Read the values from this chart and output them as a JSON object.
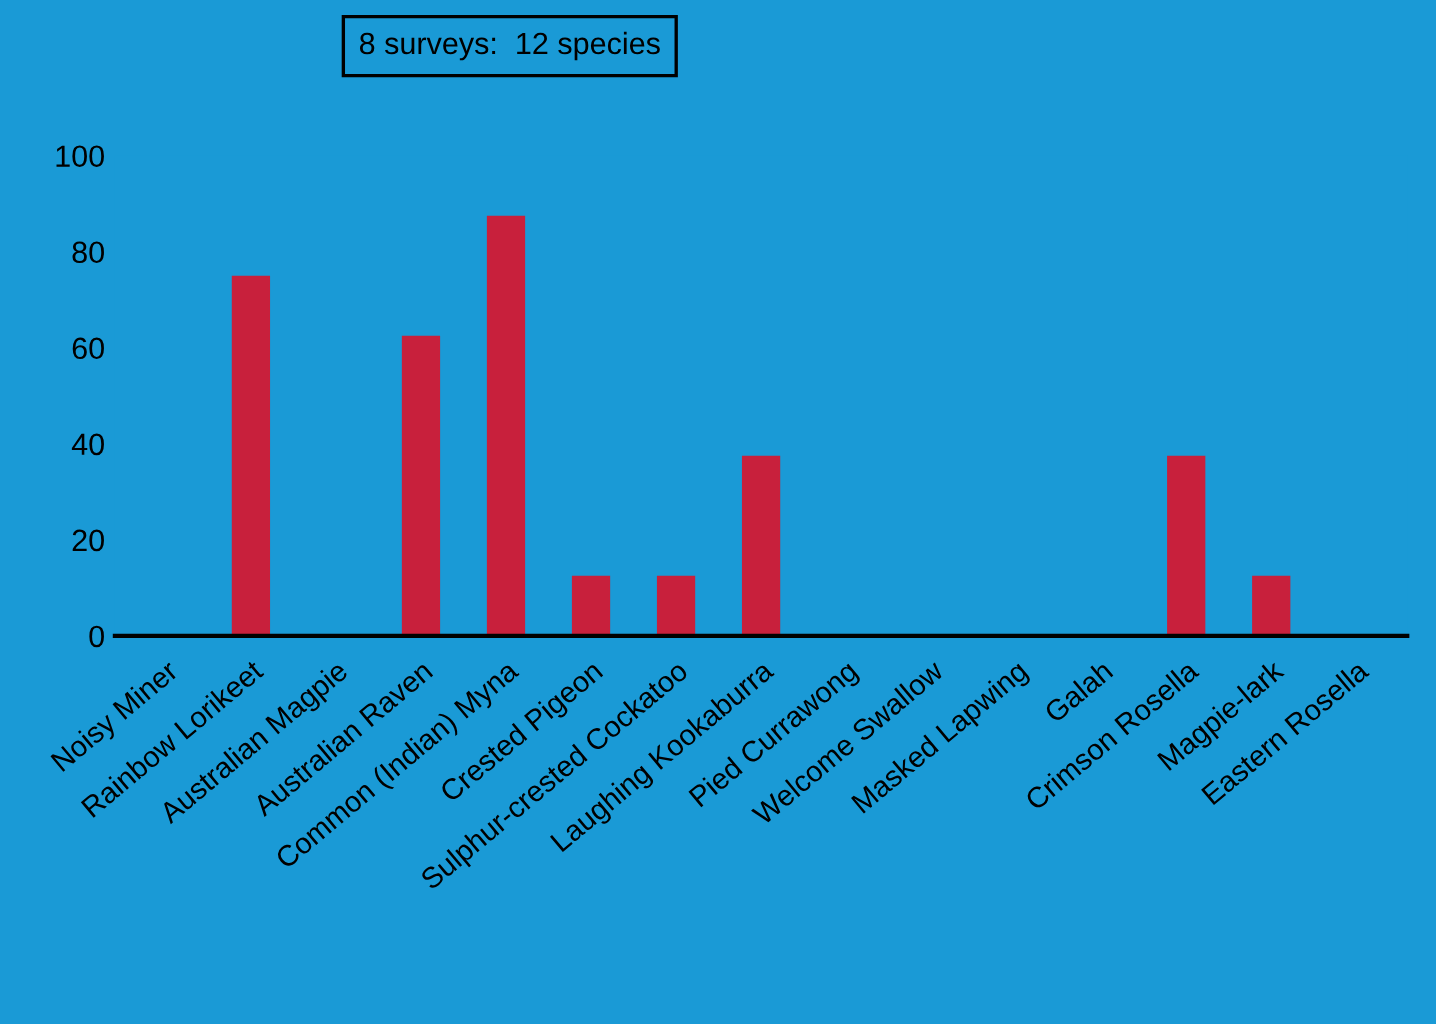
{
  "chart_data": {
    "type": "bar",
    "title": "8 surveys:  12 species",
    "categories": [
      "Noisy Miner",
      "Rainbow Lorikeet",
      "Australian Magpie",
      "Australian Raven",
      "Common (Indian) Myna",
      "Crested Pigeon",
      "Sulphur-crested Cockatoo",
      "Laughing Kookaburra",
      "Pied Currawong",
      "Welcome Swallow",
      "Masked Lapwing",
      "Galah",
      "Crimson Rosella",
      "Magpie-lark",
      "Eastern Rosella"
    ],
    "values": [
      0,
      75,
      0,
      62.5,
      87.5,
      12.5,
      12.5,
      37.5,
      0,
      0,
      0,
      0,
      37.5,
      12.5,
      0
    ],
    "color": "#c8203c",
    "ylim": [
      0,
      100
    ],
    "yticks": [
      0,
      20,
      40,
      60,
      80,
      100
    ],
    "grid": false
  }
}
